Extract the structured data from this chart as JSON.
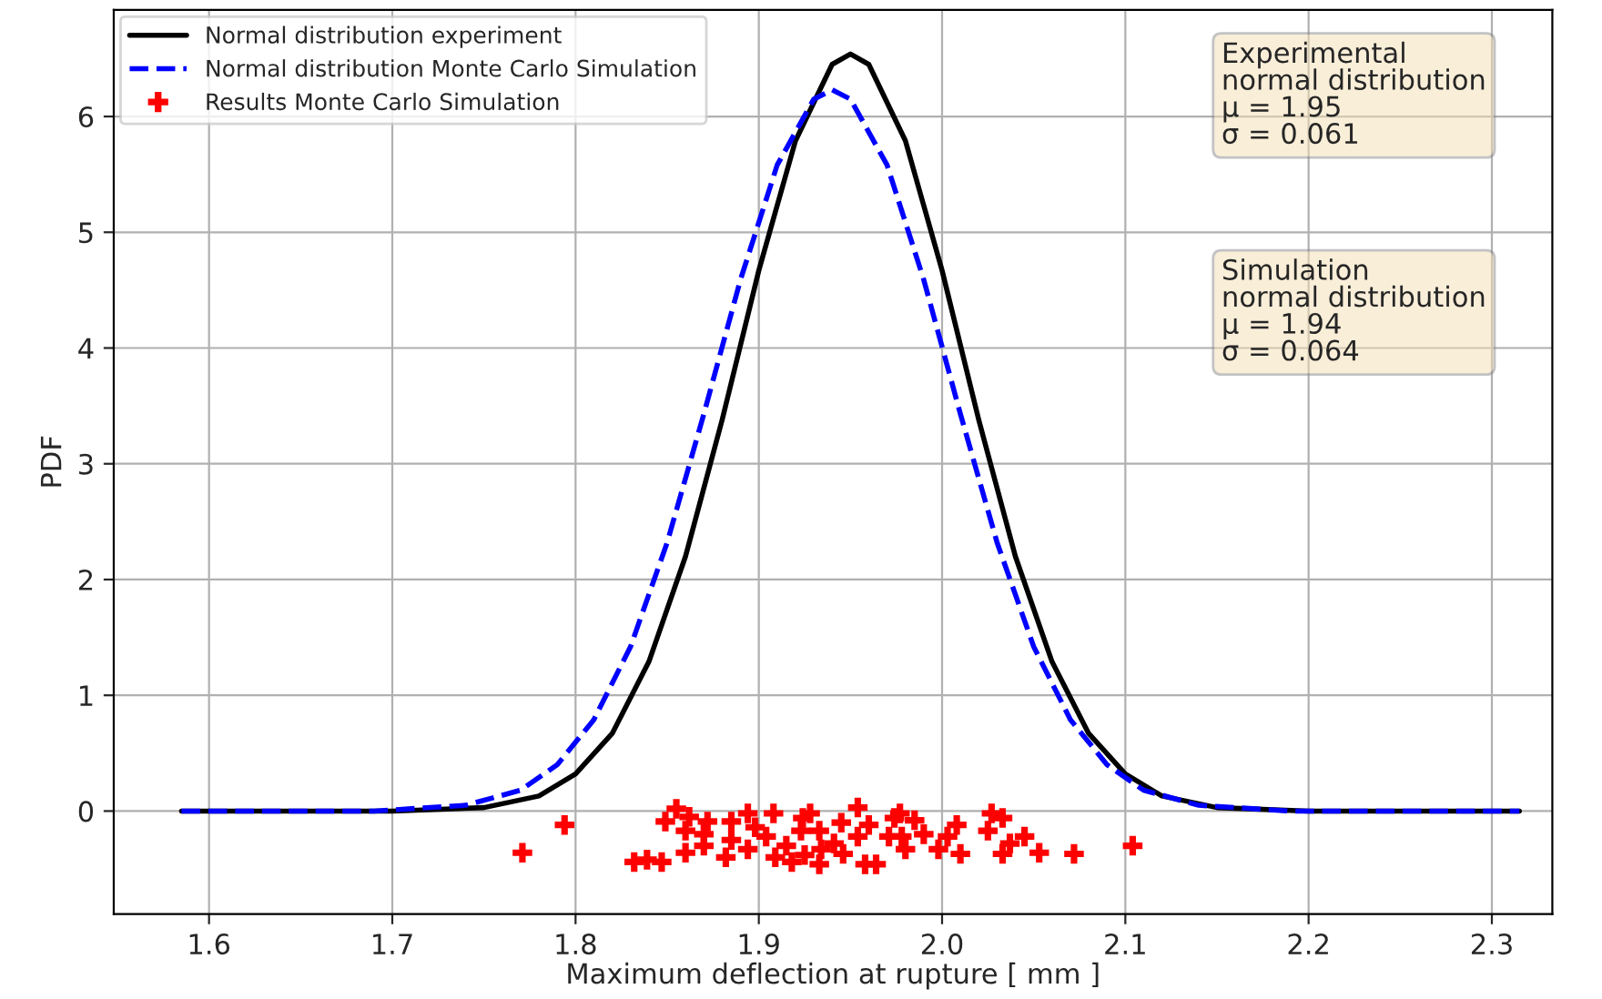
{
  "chart_data": {
    "type": "line",
    "xlabel": "Maximum deflection at rupture [ mm ]",
    "ylabel": "PDF",
    "xlim": [
      1.548,
      2.333
    ],
    "xticks": [
      {
        "value": 1.6,
        "label": "1.6"
      },
      {
        "value": 1.7,
        "label": "1.7"
      },
      {
        "value": 1.8,
        "label": "1.8"
      },
      {
        "value": 1.9,
        "label": "1.9"
      },
      {
        "value": 2.0,
        "label": "2.0"
      },
      {
        "value": 2.1,
        "label": "2.1"
      },
      {
        "value": 2.2,
        "label": "2.2"
      },
      {
        "value": 2.3,
        "label": "2.3"
      }
    ],
    "ylim": [
      -0.89,
      6.92
    ],
    "yticks": [
      0,
      1,
      2,
      3,
      4,
      5,
      6
    ],
    "grid": true,
    "legend": "top left",
    "series": [
      {
        "name": "Normal distribution experiment",
        "color": "#000000",
        "line_style": "solid",
        "x": [
          1.585,
          1.7,
          1.75,
          1.78,
          1.8,
          1.82,
          1.84,
          1.86,
          1.88,
          1.9,
          1.92,
          1.94,
          1.95,
          1.96,
          1.98,
          2.0,
          2.02,
          2.04,
          2.06,
          2.08,
          2.1,
          2.12,
          2.15,
          2.2,
          2.315
        ],
        "values": [
          0.0,
          0.0,
          0.03,
          0.13,
          0.32,
          0.67,
          1.29,
          2.2,
          3.38,
          4.67,
          5.79,
          6.45,
          6.54,
          6.45,
          5.79,
          4.67,
          3.38,
          2.2,
          1.29,
          0.67,
          0.32,
          0.13,
          0.03,
          0.0,
          0.0
        ]
      },
      {
        "name": "Normal distribution Monte Carlo Simulation",
        "color": "#0000ff",
        "line_style": "dashed",
        "x": [
          1.585,
          1.69,
          1.74,
          1.77,
          1.79,
          1.81,
          1.83,
          1.85,
          1.87,
          1.89,
          1.91,
          1.93,
          1.94,
          1.95,
          1.97,
          1.99,
          2.01,
          2.03,
          2.05,
          2.07,
          2.09,
          2.11,
          2.14,
          2.19,
          2.315
        ],
        "values": [
          0.0,
          0.0,
          0.05,
          0.18,
          0.4,
          0.79,
          1.42,
          2.32,
          3.43,
          4.59,
          5.58,
          6.15,
          6.23,
          6.15,
          5.58,
          4.59,
          3.43,
          2.32,
          1.42,
          0.79,
          0.4,
          0.18,
          0.05,
          0.0,
          0.0
        ]
      },
      {
        "name": "Results Monte Carlo Simulation",
        "type": "scatter",
        "color": "#ff0000",
        "marker": "cross",
        "x": [
          1.771,
          1.794,
          1.832,
          1.839,
          1.847,
          1.849,
          1.855,
          1.862,
          1.86,
          1.86,
          1.87,
          1.872,
          1.87,
          1.882,
          1.885,
          1.885,
          1.894,
          1.898,
          1.894,
          1.908,
          1.904,
          1.909,
          1.915,
          1.918,
          1.923,
          1.924,
          1.925,
          1.928,
          1.933,
          1.934,
          1.933,
          1.941,
          1.945,
          1.946,
          1.954,
          1.954,
          1.958,
          1.96,
          1.964,
          1.971,
          1.974,
          1.977,
          1.978,
          1.98,
          1.985,
          1.99,
          1.998,
          2.003,
          2.008,
          2.01,
          2.027,
          2.025,
          2.033,
          2.037,
          2.033,
          2.045,
          2.053,
          2.072,
          2.104
        ],
        "values": [
          -0.36,
          -0.12,
          -0.44,
          -0.42,
          -0.44,
          -0.09,
          0.02,
          -0.05,
          -0.17,
          -0.36,
          -0.2,
          -0.09,
          -0.3,
          -0.4,
          -0.09,
          -0.25,
          -0.02,
          -0.14,
          -0.33,
          -0.02,
          -0.22,
          -0.4,
          -0.3,
          -0.44,
          -0.17,
          -0.06,
          -0.38,
          -0.02,
          -0.17,
          -0.33,
          -0.46,
          -0.28,
          -0.1,
          -0.37,
          0.03,
          -0.22,
          -0.46,
          -0.12,
          -0.46,
          -0.22,
          -0.06,
          -0.02,
          -0.22,
          -0.33,
          -0.08,
          -0.2,
          -0.33,
          -0.22,
          -0.12,
          -0.37,
          -0.02,
          -0.17,
          -0.06,
          -0.28,
          -0.37,
          -0.22,
          -0.36,
          -0.37,
          -0.3
        ]
      }
    ],
    "annotations": [
      "Experimental\nnormal distribution\nμ = 1.95\nσ = 0.061",
      "Simulation\nnormal distribution\nμ = 1.94\nσ = 0.064"
    ]
  }
}
